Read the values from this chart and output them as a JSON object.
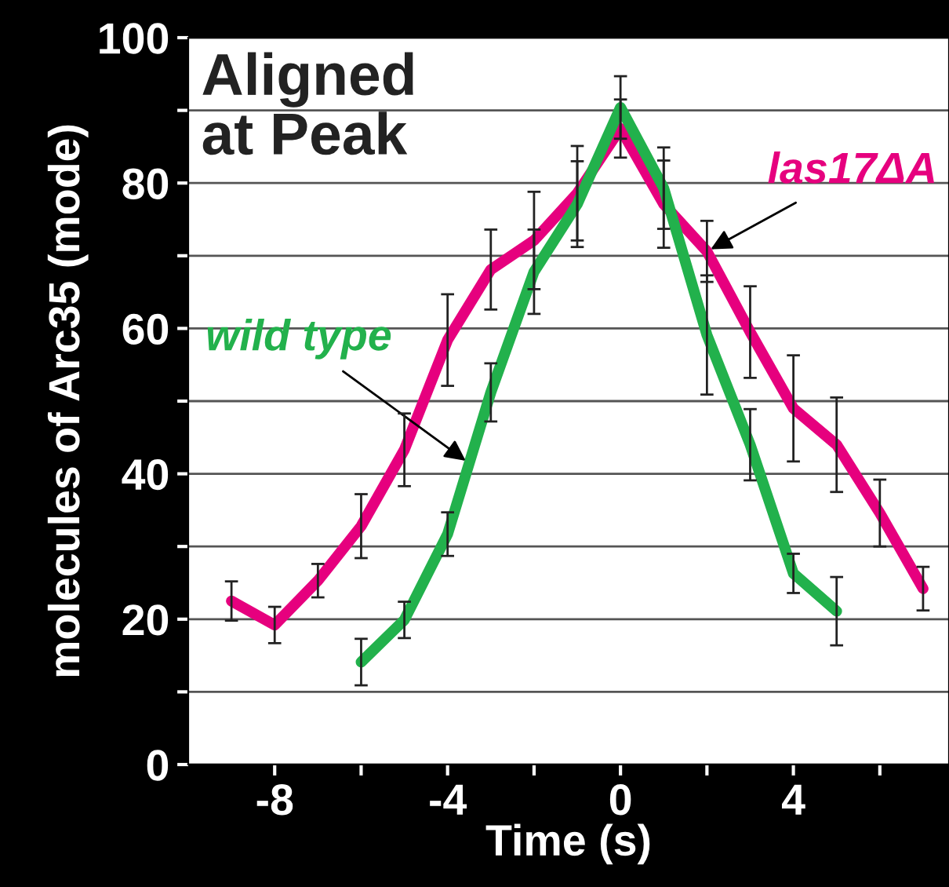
{
  "chart_data": {
    "type": "line",
    "xlabel": "Time (s)",
    "ylabel": "molecules of Arc35 (mode)",
    "xlim": [
      -10,
      7.6
    ],
    "ylim": [
      0,
      100
    ],
    "xticks": [
      {
        "value": -8,
        "label": "-8"
      },
      {
        "value": -6,
        "label": null
      },
      {
        "value": -4,
        "label": "-4"
      },
      {
        "value": -2,
        "label": null
      },
      0,
      {
        "value": 2,
        "label": null
      },
      4,
      {
        "value": 6,
        "label": null
      }
    ],
    "yticks": [
      0,
      {
        "value": 10,
        "label": null
      },
      20,
      {
        "value": 30,
        "label": null
      },
      40,
      {
        "value": 50,
        "label": null
      },
      60,
      {
        "value": 70,
        "label": null
      },
      80,
      {
        "value": 90,
        "label": null
      },
      100
    ],
    "grid": "y",
    "legend": false,
    "marker": "none",
    "line_style": "solid",
    "series": [
      {
        "name": "las17ΔA",
        "color": "#e6007e",
        "x": [
          -9,
          -8,
          -7,
          -6,
          -5,
          -4,
          -3,
          -2,
          -1,
          0,
          1,
          2,
          3,
          4,
          5,
          6,
          7
        ],
        "values": [
          22.5,
          19.2,
          25.3,
          32.8,
          43.3,
          58.4,
          68.1,
          72.1,
          78.6,
          87.5,
          77.1,
          70.6,
          59.5,
          49,
          44,
          34.6,
          24.2
        ],
        "errors": [
          2.7,
          2.5,
          2.3,
          4.4,
          5,
          6.3,
          5.5,
          6.7,
          6.5,
          4,
          6,
          4.2,
          6.3,
          7.3,
          6.5,
          4.6,
          3
        ]
      },
      {
        "name": "wild type",
        "color": "#22b14c",
        "x": [
          -6,
          -5,
          -4,
          -3,
          -2,
          -1,
          0,
          1,
          2,
          3,
          4,
          5
        ],
        "values": [
          14.1,
          19.9,
          31.7,
          51.2,
          67.8,
          77.1,
          90.4,
          79.3,
          59.1,
          44,
          26.3,
          21.1
        ],
        "errors": [
          3.2,
          2.5,
          3,
          4,
          5.8,
          5.9,
          4.3,
          5.6,
          8.2,
          4.9,
          2.7,
          4.7
        ]
      }
    ],
    "annotations": [
      "Aligned\nat Peak"
    ]
  }
}
